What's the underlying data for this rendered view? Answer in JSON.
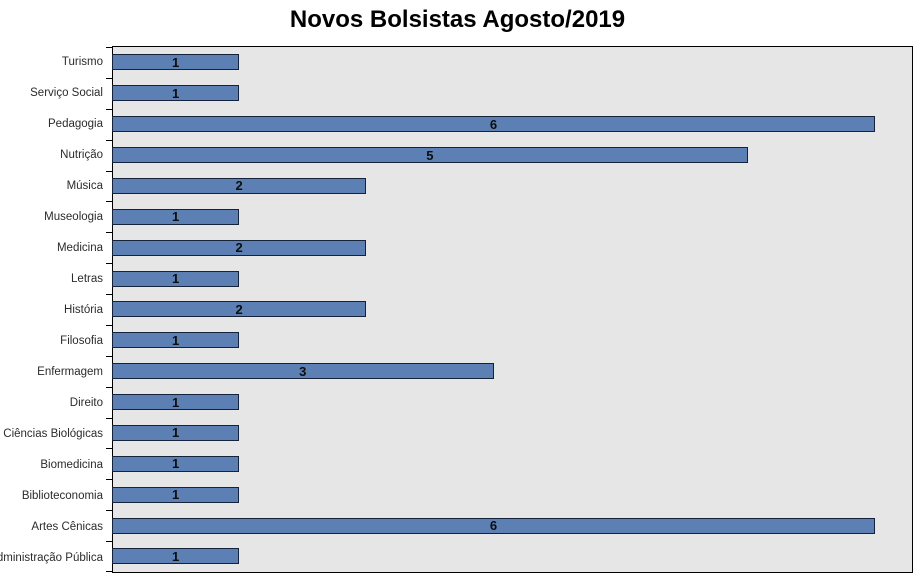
{
  "title": "Novos Bolsistas Agosto/2019",
  "chart_data": {
    "type": "bar",
    "orientation": "horizontal",
    "title": "Novos Bolsistas Agosto/2019",
    "categories": [
      "Turismo",
      "Serviço Social",
      "Pedagogia",
      "Nutrição",
      "Música",
      "Museologia",
      "Medicina",
      "Letras",
      "História",
      "Filosofia",
      "Enfermagem",
      "Direito",
      "Ciências Biológicas",
      "Biomedicina",
      "Biblioteconomia",
      "Artes Cênicas",
      "Administração Pública"
    ],
    "values": [
      1,
      1,
      6,
      5,
      2,
      1,
      2,
      1,
      2,
      1,
      3,
      1,
      1,
      1,
      1,
      6,
      1
    ],
    "xlabel": "",
    "ylabel": "",
    "xlim": [
      0,
      6.283
    ],
    "data_labels": "centered",
    "legend": false,
    "grid": false,
    "category_order": "top-to-bottom",
    "colors": {
      "bar_fill": "#5C80B4",
      "bar_border": "#16213A",
      "plot_background": "#E6E6E6",
      "plot_border": "#000000",
      "chart_background": "#FFFFFF",
      "label_text": "#2B2B2B",
      "value_text": "#0D0D0D"
    }
  }
}
